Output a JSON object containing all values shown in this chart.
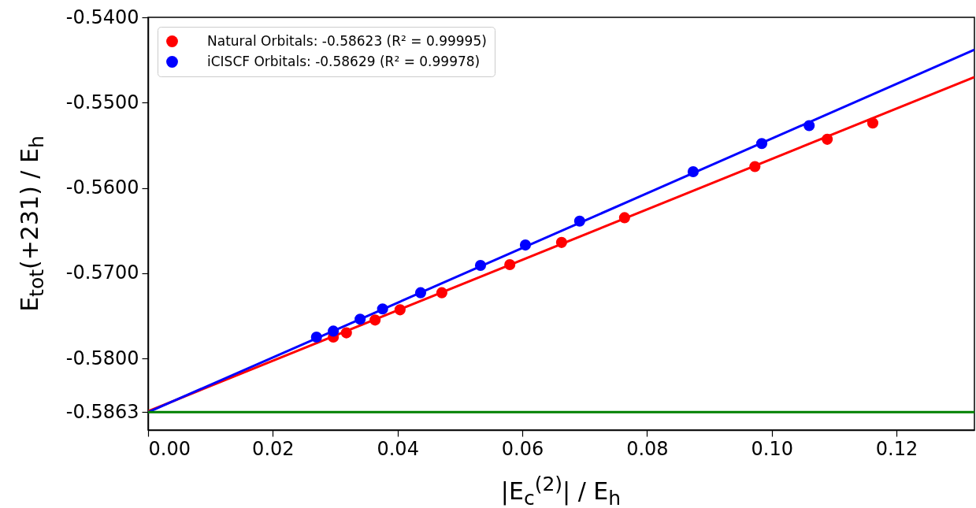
{
  "chart_data": {
    "type": "scatter",
    "xlabel": "|E$_{c}$$^{(2)}$| / E$_{h}$",
    "ylabel": "E$_{tot}$(+231) / E$_{h}$",
    "xlim": [
      0,
      0.1325
    ],
    "ylim": [
      -0.5884,
      -0.54
    ],
    "xticks": [
      {
        "value": 0,
        "label": "0.00"
      },
      {
        "value": 0.02,
        "label": "0.02"
      },
      {
        "value": 0.04,
        "label": "0.04"
      },
      {
        "value": 0.06,
        "label": "0.06"
      },
      {
        "value": 0.08,
        "label": "0.08"
      },
      {
        "value": 0.1,
        "label": "0.10"
      },
      {
        "value": 0.12,
        "label": "0.12"
      }
    ],
    "yticks": [
      {
        "value": -0.5863,
        "label": "-0.5863"
      },
      {
        "value": -0.58,
        "label": "-0.5800"
      },
      {
        "value": -0.57,
        "label": "-0.5700"
      },
      {
        "value": -0.56,
        "label": "-0.5600"
      },
      {
        "value": -0.55,
        "label": "-0.5500"
      },
      {
        "value": -0.54,
        "label": "-0.5400"
      }
    ],
    "series": [
      {
        "name": "Natural Orbitals: -0.58623 (R² = 0.99995)",
        "color": "#ff0000",
        "x": [
          0.0297,
          0.0318,
          0.0364,
          0.0404,
          0.0471,
          0.058,
          0.0663,
          0.0764,
          0.0973,
          0.1089,
          0.1162
        ],
        "values": [
          -0.5775,
          -0.577,
          -0.5755,
          -0.5743,
          -0.5723,
          -0.569,
          -0.5664,
          -0.5635,
          -0.5575,
          -0.5543,
          -0.5524
        ]
      },
      {
        "name": "iCISCF Orbitals: -0.58629 (R² = 0.99978)",
        "color": "#0000ff",
        "x": [
          0.027,
          0.0297,
          0.034,
          0.0376,
          0.0437,
          0.0533,
          0.0605,
          0.0692,
          0.0874,
          0.0984,
          0.106
        ],
        "values": [
          -0.5775,
          -0.5768,
          -0.5754,
          -0.5742,
          -0.5723,
          -0.5691,
          -0.5667,
          -0.5639,
          -0.5581,
          -0.5548,
          -0.5527
        ]
      },
      {
        "type": "line",
        "marker": "none",
        "color": "#ff0000",
        "x": [
          0,
          0.1325
        ],
        "values": [
          -0.5862,
          -0.547
        ]
      },
      {
        "type": "line",
        "marker": "none",
        "color": "#0000ff",
        "x": [
          0,
          0.1325
        ],
        "values": [
          -0.5863,
          -0.5438
        ]
      }
    ],
    "ref_lines": [
      {
        "axis": "y",
        "value": -0.5863,
        "color": "#008000"
      }
    ],
    "marker": "circle",
    "legend": "top left",
    "grid": false
  }
}
